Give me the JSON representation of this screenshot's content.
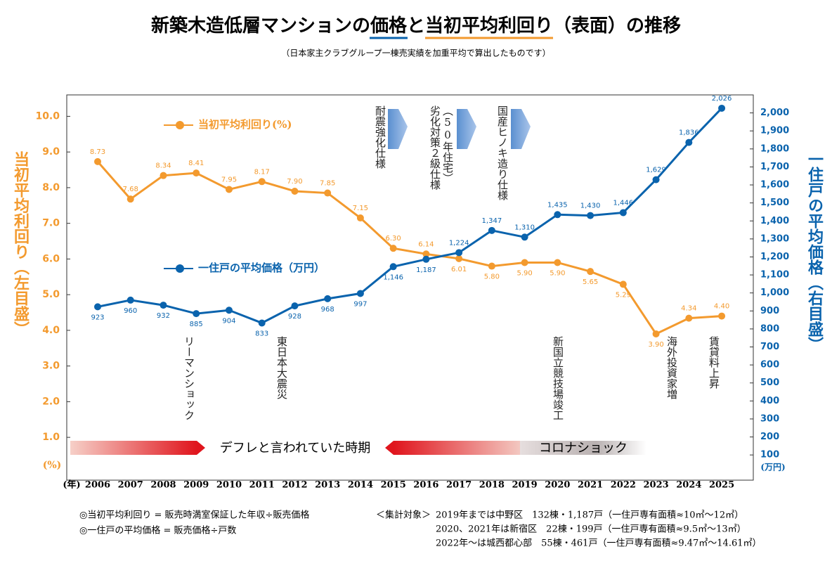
{
  "chart_data": {
    "type": "line",
    "title": [
      "新築木造低層マンションの",
      "価格",
      "と",
      "当初平均利回り",
      "（表面）の推移"
    ],
    "subtitle": "（日本家主クラブグループ一棟売実績を加重平均で算出したものです）",
    "y_label": "当初平均利回り（左目盛）",
    "y2_label": "一住戸の平均価格（右目盛）",
    "y_unit": "(%)",
    "y2_unit": "(万円)",
    "x_unit": "(年)",
    "categories": [
      "2006",
      "2007",
      "2008",
      "2009",
      "2010",
      "2011",
      "2012",
      "2013",
      "2014",
      "2015",
      "2016",
      "2017",
      "2018",
      "2019",
      "2020",
      "2021",
      "2022",
      "2023",
      "2024",
      "2025"
    ],
    "series": [
      {
        "name": "当初平均利回り(%)",
        "color": "#f39a2e",
        "axis": "y",
        "values": [
          8.73,
          7.68,
          8.34,
          8.41,
          7.95,
          8.17,
          7.9,
          7.85,
          7.15,
          6.3,
          6.14,
          6.01,
          5.8,
          5.9,
          5.9,
          5.65,
          5.29,
          3.9,
          4.34,
          4.4
        ],
        "value_labels": [
          "8.73",
          "7.68",
          "8.34",
          "8.41",
          "7.95",
          "8.17",
          "7.90",
          "7.85",
          "7.15",
          "6.30",
          "6.14",
          "6.01",
          "5.80",
          "5.90",
          "5.90",
          "5.65",
          "5.29",
          "3.90",
          "4.34",
          "4.40"
        ]
      },
      {
        "name": "一住戸の平均価格（万円）",
        "color": "#0a63ad",
        "axis": "y2",
        "values": [
          923,
          960,
          932,
          885,
          904,
          833,
          928,
          968,
          997,
          1146,
          1187,
          1224,
          1347,
          1310,
          1435,
          1430,
          1446,
          1629,
          1836,
          2026
        ],
        "value_labels": [
          "923",
          "960",
          "932",
          "885",
          "904",
          "833",
          "928",
          "968",
          "997",
          "1,146",
          "1,187",
          "1,224",
          "1,347",
          "1,310",
          "1,435",
          "1,430",
          "1,446",
          "1,629",
          "1,836",
          "2,026"
        ]
      }
    ],
    "ylim": [
      -0.2,
      10.6
    ],
    "yticks": [
      {
        "value": 1,
        "label": "1.0"
      },
      {
        "value": 2,
        "label": "2.0"
      },
      {
        "value": 3,
        "label": "3.0"
      },
      {
        "value": 4,
        "label": "4.0"
      },
      {
        "value": 5,
        "label": "5.0"
      },
      {
        "value": 6,
        "label": "6.0"
      },
      {
        "value": 7,
        "label": "7.0"
      },
      {
        "value": 8,
        "label": "8.0"
      },
      {
        "value": 9,
        "label": "9.0"
      },
      {
        "value": 10,
        "label": "10.0"
      }
    ],
    "y2lim": [
      -40,
      2100
    ],
    "y2ticks": [
      100,
      200,
      300,
      400,
      500,
      600,
      700,
      800,
      900,
      {
        "value": 1000,
        "label": "1,000"
      },
      {
        "value": 1100,
        "label": "1,100"
      },
      {
        "value": 1200,
        "label": "1,200"
      },
      {
        "value": 1300,
        "label": "1,300"
      },
      {
        "value": 1400,
        "label": "1,400"
      },
      {
        "value": 1500,
        "label": "1,500"
      },
      {
        "value": 1600,
        "label": "1,600"
      },
      {
        "value": 1700,
        "label": "1,700"
      },
      {
        "value": 1800,
        "label": "1,800"
      },
      {
        "value": 1900,
        "label": "1,900"
      },
      {
        "value": 2000,
        "label": "2,000"
      }
    ],
    "top_annotations": [
      "耐震強化仕様",
      "劣化対策２級仕様",
      "（50年住宅）",
      "国産ヒノキ造り仕様"
    ],
    "bottom_annotations": [
      "リーマンショック",
      "東日本大震災",
      "新国立競技場竣工",
      "海外投資家増",
      "賃貸料上昇"
    ],
    "periods": [
      "デフレと言われていた時期",
      "コロナショック"
    ],
    "notes": [
      "◎当初平均利回り = 販売時満室保証した年収÷販売価格",
      "◎一住戸の平均価格 = 販売価格÷戸数"
    ],
    "scope_label": "＜集計対象＞",
    "scope": [
      "2019年までは中野区　132棟・1,187戸（一住戸専有面積≈10㎡〜12㎡）",
      "2020、2021年は新宿区　22棟・199戸（一住戸専有面積≈9.5㎡〜13㎡）",
      "2022年〜は城西都心部　55棟・461戸（一住戸専有面積≈9.47㎡〜14.61㎡）"
    ]
  }
}
